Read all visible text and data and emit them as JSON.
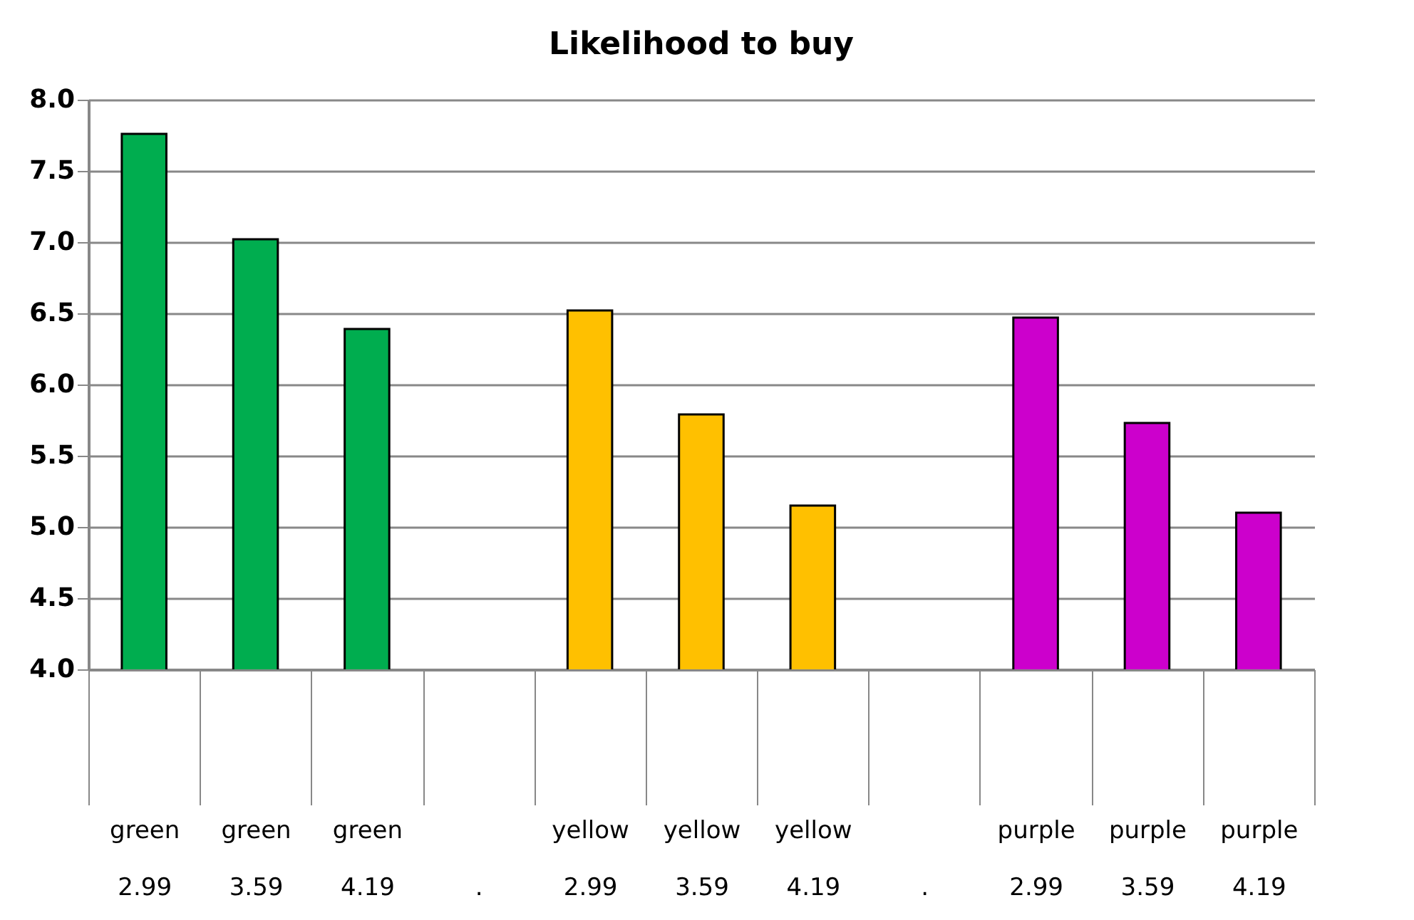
{
  "chart_data": {
    "type": "bar",
    "title": "Likelihood to buy",
    "categories": [
      "green\n2.99",
      "green\n3.59",
      "green\n4.19",
      "\n.",
      "yellow\n2.99",
      "yellow\n3.59",
      "yellow\n4.19",
      "\n.",
      "purple\n2.99",
      "purple\n3.59",
      "purple\n4.19"
    ],
    "values": [
      7.76,
      7.02,
      6.39,
      null,
      6.52,
      5.79,
      5.15,
      null,
      6.47,
      5.73,
      5.1
    ],
    "colors": [
      "#00ad4f",
      "#00ad4f",
      "#00ad4f",
      null,
      "#ffc000",
      "#ffc000",
      "#ffc000",
      null,
      "#cc00cc",
      "#cc00cc",
      "#cc00cc"
    ],
    "ylim": [
      4.0,
      8.0
    ],
    "yticks": [
      {
        "value": 4,
        "label": "4.0"
      },
      {
        "value": 4.5,
        "label": "4.5"
      },
      {
        "value": 5,
        "label": "5.0"
      },
      {
        "value": 5.5,
        "label": "5.5"
      },
      {
        "value": 6,
        "label": "6.0"
      },
      {
        "value": 6.5,
        "label": "6.5"
      },
      {
        "value": 7,
        "label": "7.0"
      },
      {
        "value": 7.5,
        "label": "7.5"
      },
      {
        "value": 8,
        "label": "8.0"
      }
    ],
    "grid": "y"
  }
}
